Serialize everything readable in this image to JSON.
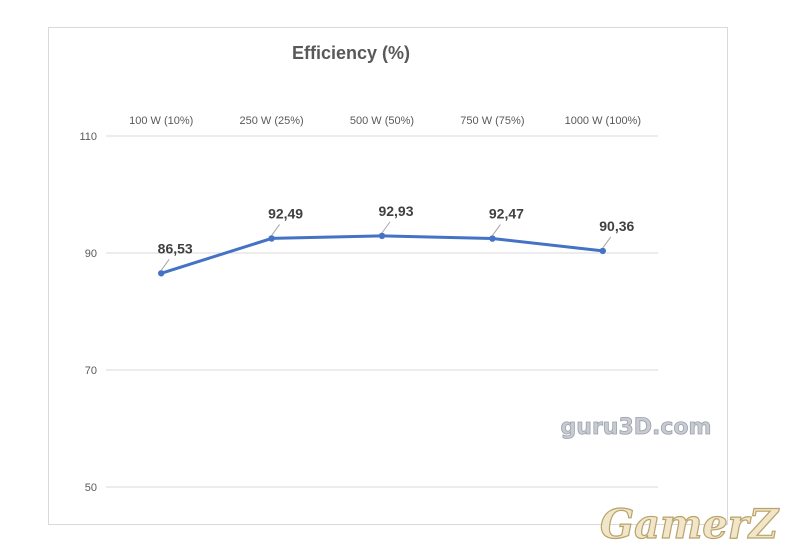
{
  "chart_data": {
    "type": "line",
    "title": "Efficiency (%)",
    "categories": [
      "100 W (10%)",
      "250 W (25%)",
      "500 W (50%)",
      "750 W (75%)",
      "1000 W (100%)"
    ],
    "series": [
      {
        "values": [
          86.53,
          92.49,
          92.93,
          92.47,
          90.36
        ],
        "labels": [
          "86,53",
          "92,49",
          "92,93",
          "92,47",
          "90,36"
        ],
        "color": "#4472c4"
      }
    ],
    "ylim": [
      50,
      110
    ],
    "y_ticks": [
      "110",
      "90",
      "70",
      "50"
    ],
    "y_tick_values": [
      110,
      90,
      70,
      50
    ],
    "xaxis_position": "top",
    "grid": true
  },
  "watermarks": {
    "guru3d": "guru3D.com",
    "gamerz": "GamerZ"
  }
}
